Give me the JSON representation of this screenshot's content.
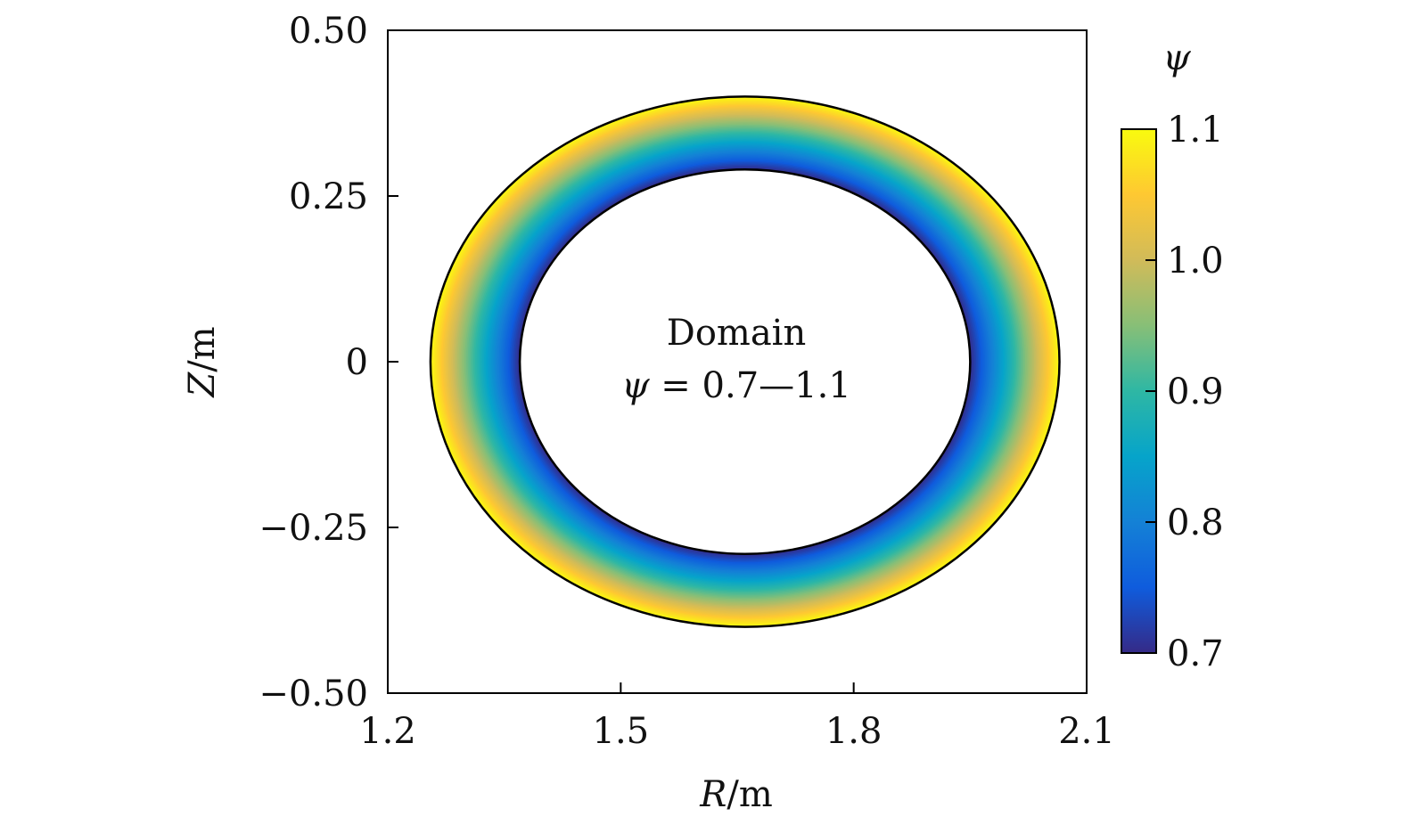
{
  "chart_data": {
    "type": "heatmap",
    "title": "",
    "xlabel": {
      "var": "R",
      "unit": "/m"
    },
    "ylabel": {
      "var": "Z",
      "unit": "/m"
    },
    "xlim": [
      1.2,
      2.1
    ],
    "ylim": [
      -0.5,
      0.5
    ],
    "x_ticks": [
      1.2,
      1.5,
      1.8,
      2.1
    ],
    "x_tick_labels": [
      "1.2",
      "1.5",
      "1.8",
      "2.1"
    ],
    "y_ticks": [
      0.5,
      0.25,
      0,
      -0.25,
      -0.5
    ],
    "y_tick_labels": [
      "0.50",
      "0.25",
      "0",
      "−0.25",
      "−0.50"
    ],
    "domain": {
      "center_R": 1.66,
      "center_Z": 0.0,
      "inner_half_width_R": 0.29,
      "inner_half_height_Z": 0.29,
      "outer_half_width_R": 0.405,
      "outer_half_height_Z": 0.4,
      "psi_inner": 0.7,
      "psi_outer": 1.1
    },
    "annotation": {
      "line1": "Domain",
      "psi_symbol": "ψ",
      "line2": " = 0.7—1.1"
    },
    "colorbar": {
      "label": "ψ",
      "range": [
        0.7,
        1.1
      ],
      "ticks": [
        1.1,
        1.0,
        0.9,
        0.8,
        0.7
      ],
      "tick_labels": [
        "1.1",
        "1.0",
        "0.9",
        "0.8",
        "0.7"
      ],
      "colormap": "parula",
      "colors": [
        "#352a87",
        "#0f5cdd",
        "#1481d6",
        "#06a4ca",
        "#2eb7a4",
        "#87bf77",
        "#d1bb59",
        "#fec832",
        "#f9fb0e"
      ]
    },
    "grid": false,
    "legend": "none"
  }
}
